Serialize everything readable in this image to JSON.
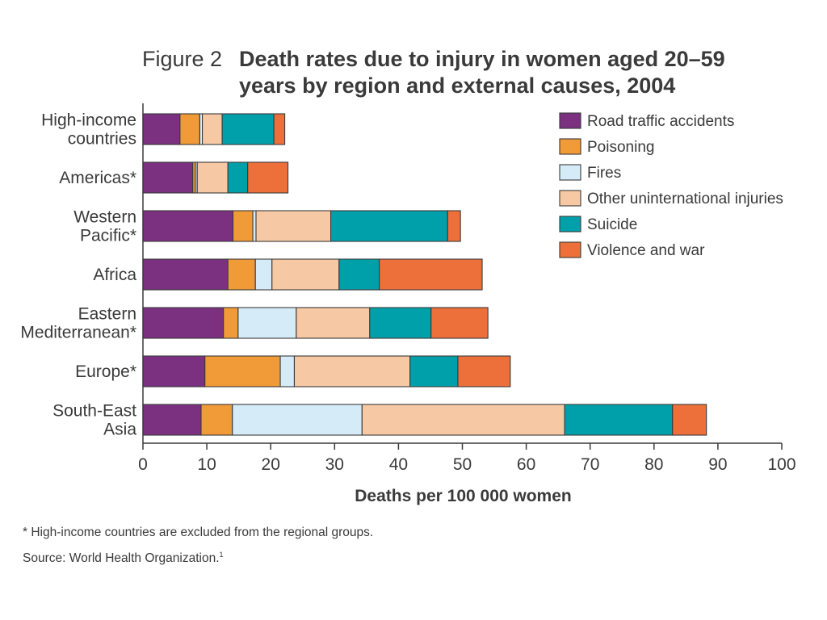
{
  "chart_data": {
    "type": "bar",
    "orientation": "horizontal",
    "stacked": true,
    "title_prefix": "Figure 2",
    "title": "Death rates due to injury in women aged 20–59 years by region and external causes, 2004",
    "title_lines": [
      "Death rates due to injury in women aged 20–59",
      "years by region and external causes, 2004"
    ],
    "xlabel": "Deaths per 100 000 women",
    "ylabel": "",
    "xlim": [
      0,
      100
    ],
    "x_ticks": [
      0,
      10,
      20,
      30,
      40,
      50,
      60,
      70,
      80,
      90,
      100
    ],
    "grid": false,
    "legend_position": "top-right",
    "categories": [
      [
        "High-income",
        "countries"
      ],
      [
        "Americas*"
      ],
      [
        "Western",
        "Pacific*"
      ],
      [
        "Africa"
      ],
      [
        "Eastern",
        "Mediterranean*"
      ],
      [
        "Europe*"
      ],
      [
        "South-East",
        "Asia"
      ]
    ],
    "series": [
      {
        "name": "Road traffic accidents",
        "color": "#7b3180",
        "values": [
          5.8,
          7.8,
          14.1,
          13.3,
          12.6,
          9.7,
          9.1
        ]
      },
      {
        "name": "Poisoning",
        "color": "#f09a38",
        "values": [
          3.1,
          0.4,
          3.1,
          4.3,
          2.3,
          11.8,
          4.9
        ]
      },
      {
        "name": "Fires",
        "color": "#d5ecf8",
        "values": [
          0.4,
          0.3,
          0.5,
          2.6,
          9.1,
          2.2,
          20.3
        ]
      },
      {
        "name": "Other uninternational injuries",
        "color": "#f6c9a4",
        "values": [
          3.1,
          4.8,
          11.7,
          10.5,
          11.5,
          18.1,
          31.7
        ]
      },
      {
        "name": "Suicide",
        "color": "#00a0aa",
        "values": [
          8.1,
          3.1,
          18.3,
          6.3,
          9.6,
          7.5,
          16.9
        ]
      },
      {
        "name": "Violence and war",
        "color": "#ed703a",
        "values": [
          1.7,
          6.3,
          2.0,
          16.1,
          8.9,
          8.2,
          5.3
        ]
      }
    ]
  },
  "notes": {
    "footnote": "* High-income countries are excluded from the regional groups.",
    "source": "Source: World Health Organization.",
    "source_ref": "1"
  }
}
